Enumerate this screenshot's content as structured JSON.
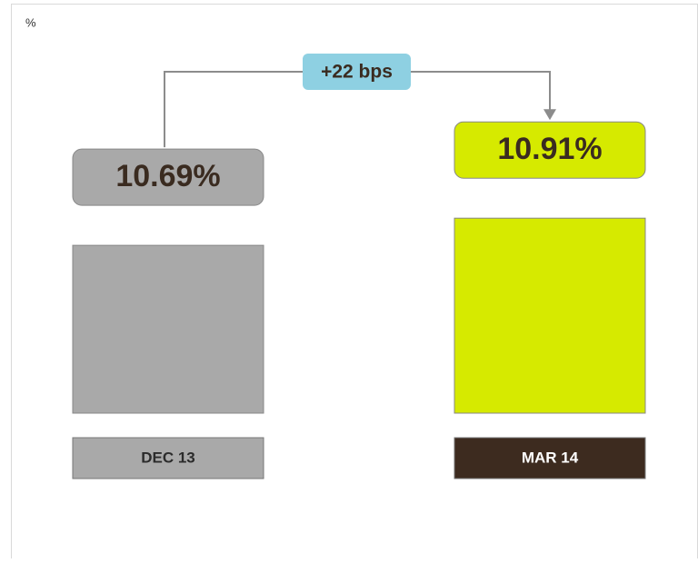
{
  "chart_data": {
    "type": "bar",
    "y_unit": "%",
    "categories": [
      "DEC 13",
      "MAR 14"
    ],
    "values": [
      10.69,
      10.91
    ],
    "value_labels": [
      "10.69%",
      "10.91%"
    ],
    "colors": [
      "#a9a9a9",
      "#d6ea00"
    ],
    "category_box_colors": [
      "#a9a9a9",
      "#3d2b1f"
    ],
    "category_text_colors": [
      "#2b2b2b",
      "#ffffff"
    ],
    "annotation": "+22 bps",
    "annotation_color": "#8ed0e2",
    "ylim": [
      9.33,
      11.0
    ]
  }
}
